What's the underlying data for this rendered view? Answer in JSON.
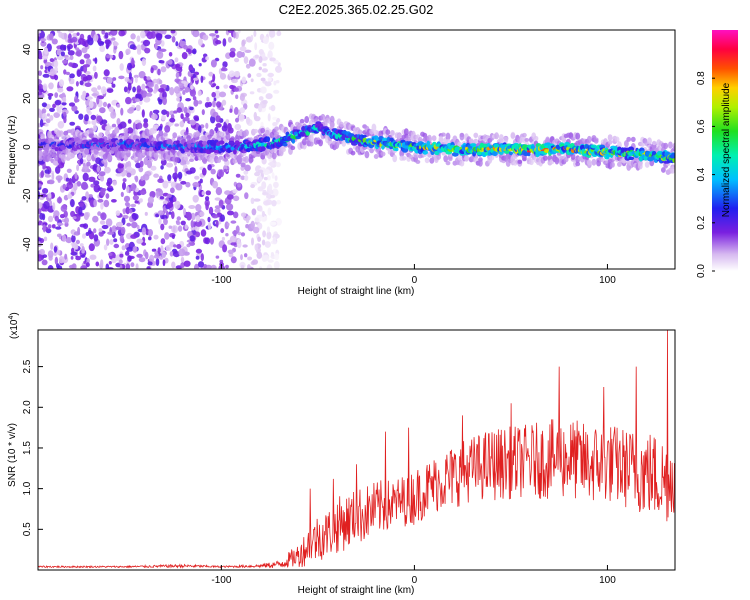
{
  "title": "C2E2.2025.365.02.25.G02",
  "colors": {
    "snr_line": "#e02020",
    "axis": "#000000"
  },
  "chart_data": [
    {
      "type": "heatmap",
      "name": "spectrogram",
      "xlabel": "Height of straight line (km)",
      "ylabel": "Frequency (Hz)",
      "xlim": [
        -195,
        135
      ],
      "ylim": [
        -50,
        48
      ],
      "x_ticks": [
        -100,
        0,
        100
      ],
      "x_tick_labels": [
        "-100",
        "0",
        "100"
      ],
      "y_ticks": [
        -40,
        -20,
        0,
        20,
        40
      ],
      "y_tick_labels": [
        "-40",
        "-20",
        "0",
        "20",
        "40"
      ],
      "colorbar": {
        "label": "Normalized spectral amplitude",
        "range": [
          0,
          1
        ],
        "ticks": [
          0.0,
          0.2,
          0.4,
          0.6,
          0.8
        ],
        "tick_labels": [
          "0.0",
          "0.2",
          "0.4",
          "0.6",
          "0.8"
        ],
        "colormap": "rainbow (white-violet-blue-cyan-green-yellow-red-magenta)"
      },
      "ridge": {
        "description": "dominant narrow-band signal near 0 Hz",
        "x": [
          -190,
          -150,
          -110,
          -90,
          -70,
          -60,
          -50,
          -40,
          -30,
          -20,
          0,
          20,
          40,
          60,
          80,
          100,
          120,
          135
        ],
        "freq": [
          1,
          1,
          0,
          0,
          2,
          5,
          8,
          5,
          3,
          2,
          0,
          -1,
          -1,
          -1,
          -1,
          -2,
          -3,
          -5
        ],
        "peak_amplitude": [
          0.3,
          0.35,
          0.4,
          0.45,
          0.55,
          0.6,
          0.5,
          0.55,
          0.6,
          0.75,
          0.8,
          0.8,
          0.85,
          0.9,
          0.85,
          0.8,
          0.75,
          0.7
        ]
      },
      "noise_region_x": [
        -195,
        -80
      ]
    },
    {
      "type": "line",
      "name": "snr",
      "xlabel": "Height of straight line (km)",
      "ylabel": "SNR (10 * v/v)",
      "y_multiplier_label": "(x10",
      "y_multiplier_exp": "4",
      "y_multiplier_close": ")",
      "xlim": [
        -195,
        135
      ],
      "ylim": [
        0,
        2.95
      ],
      "x_ticks": [
        -100,
        0,
        100
      ],
      "x_tick_labels": [
        "-100",
        "0",
        "100"
      ],
      "y_ticks": [
        0.5,
        1.0,
        1.5,
        2.0,
        2.5
      ],
      "y_tick_labels": [
        "0.5",
        "1.0",
        "1.5",
        "2.0",
        "2.5"
      ],
      "series": [
        {
          "name": "SNR",
          "x": [
            -195,
            -150,
            -120,
            -100,
            -80,
            -70,
            -60,
            -55,
            -50,
            -45,
            -40,
            -30,
            -20,
            -10,
            0,
            10,
            20,
            30,
            40,
            50,
            60,
            70,
            80,
            90,
            100,
            110,
            120,
            130,
            135
          ],
          "y_mean": [
            0.04,
            0.04,
            0.05,
            0.04,
            0.05,
            0.07,
            0.18,
            0.3,
            0.4,
            0.45,
            0.55,
            0.65,
            0.75,
            0.82,
            0.9,
            1.05,
            1.15,
            1.25,
            1.3,
            1.32,
            1.35,
            1.35,
            1.38,
            1.3,
            1.32,
            1.25,
            1.2,
            1.1,
            1.2
          ],
          "y_spread": [
            0.01,
            0.01,
            0.02,
            0.01,
            0.02,
            0.05,
            0.15,
            0.25,
            0.3,
            0.3,
            0.35,
            0.35,
            0.35,
            0.3,
            0.35,
            0.35,
            0.4,
            0.4,
            0.45,
            0.45,
            0.45,
            0.5,
            0.5,
            0.5,
            0.5,
            0.5,
            0.55,
            0.55,
            0.5
          ],
          "peaks": [
            {
              "x": -54,
              "y": 1.0
            },
            {
              "x": -42,
              "y": 1.12
            },
            {
              "x": -30,
              "y": 1.3
            },
            {
              "x": -15,
              "y": 1.7
            },
            {
              "x": -3,
              "y": 1.75
            },
            {
              "x": 25,
              "y": 1.9
            },
            {
              "x": 50,
              "y": 2.05
            },
            {
              "x": 75,
              "y": 2.5
            },
            {
              "x": 98,
              "y": 2.25
            },
            {
              "x": 115,
              "y": 2.5
            },
            {
              "x": 131,
              "y": 2.95
            }
          ]
        }
      ]
    }
  ]
}
